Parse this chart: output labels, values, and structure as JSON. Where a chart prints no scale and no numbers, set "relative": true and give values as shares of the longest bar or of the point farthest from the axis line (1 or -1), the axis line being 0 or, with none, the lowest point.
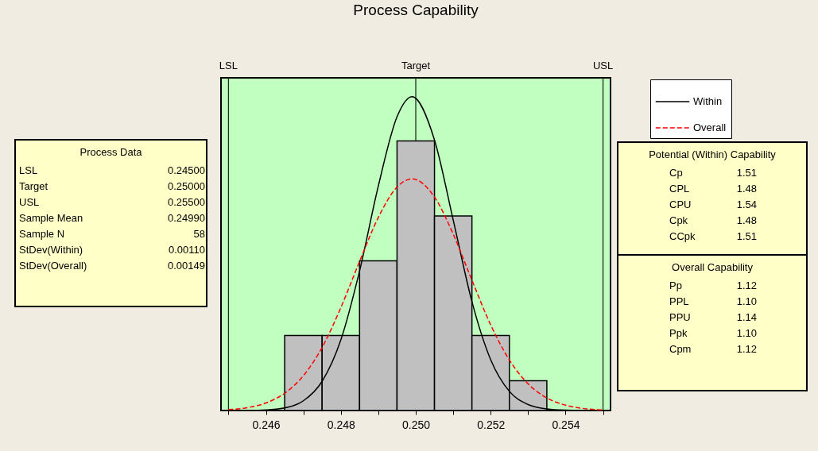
{
  "chart_data": [
    {
      "type": "other",
      "title": "Process Data",
      "categories": [
        "LSL",
        "Target",
        "USL",
        "Sample Mean",
        "Sample N",
        "StDev(Within)",
        "StDev(Overall)"
      ],
      "value_labels": [
        "0.24500",
        "0.25000",
        "0.25500",
        "0.24990",
        "58",
        "0.00110",
        "0.00149"
      ]
    },
    {
      "type": "histogram",
      "title": "Process Capability",
      "relative": true,
      "bins": [
        0.2465,
        0.2475,
        0.2485,
        0.2495,
        0.2505,
        0.2515,
        0.2525,
        0.2535
      ],
      "values": [
        0.239,
        0.239,
        0.477,
        0.859,
        0.62,
        0.239,
        0.095
      ],
      "color": "#c0c0c0",
      "xlim": [
        0.2448,
        0.2552
      ],
      "xticks": [
        {
          "value": 0.245,
          "label": null
        },
        0.246,
        {
          "value": 0.247,
          "label": null
        },
        0.248,
        {
          "value": 0.249,
          "label": null
        },
        {
          "value": 0.25,
          "label": "0.250"
        },
        {
          "value": 0.251,
          "label": null
        },
        0.252,
        {
          "value": 0.253,
          "label": null
        },
        0.254,
        {
          "value": 0.255,
          "label": null
        }
      ],
      "legend": "top right",
      "grid": false,
      "series": [
        {
          "name": "Within",
          "type": "line",
          "color": "#000000",
          "line_style": "solid",
          "x": [
            0.2455,
            0.246,
            0.2465,
            0.247,
            0.2475,
            0.248,
            0.2485,
            0.249,
            0.2495,
            0.2499,
            0.2505,
            0.251,
            0.2515,
            0.252,
            0.2525,
            0.253,
            0.2535,
            0.254,
            0.2545
          ],
          "values": [
            0,
            0.002,
            0.008,
            0.031,
            0.093,
            0.225,
            0.445,
            0.715,
            0.936,
            1,
            0.862,
            0.607,
            0.347,
            0.162,
            0.061,
            0.019,
            0.005,
            0.001,
            0
          ]
        },
        {
          "name": "Overall",
          "type": "line",
          "color": "#ff0000",
          "line_style": "dashed",
          "x": [
            0.245,
            0.2455,
            0.246,
            0.2465,
            0.247,
            0.2475,
            0.248,
            0.2485,
            0.249,
            0.2495,
            0.2499,
            0.2505,
            0.251,
            0.2515,
            0.252,
            0.2525,
            0.253,
            0.2535,
            0.254,
            0.2545,
            0.255
          ],
          "values": [
            0.003,
            0.009,
            0.024,
            0.055,
            0.111,
            0.201,
            0.328,
            0.475,
            0.615,
            0.712,
            0.738,
            0.68,
            0.562,
            0.415,
            0.273,
            0.161,
            0.085,
            0.04,
            0.017,
            0.006,
            0.002
          ]
        }
      ],
      "ref_lines": [
        {
          "axis": "x",
          "value": 0.245,
          "label": "LSL"
        },
        {
          "axis": "x",
          "value": 0.25,
          "label": "Target"
        },
        {
          "axis": "x",
          "value": 0.255,
          "label": "USL"
        }
      ]
    },
    {
      "type": "other",
      "title": "Potential (Within) Capability",
      "categories": [
        "Cp",
        "CPL",
        "CPU",
        "Cpk",
        "CCpk"
      ],
      "value_labels": [
        "1.51",
        "1.48",
        "1.54",
        "1.48",
        "1.51"
      ]
    },
    {
      "type": "other",
      "title": "Overall Capability",
      "categories": [
        "Pp",
        "PPL",
        "PPU",
        "Ppk",
        "Cpm"
      ],
      "value_labels": [
        "1.12",
        "1.10",
        "1.14",
        "1.10",
        "1.12"
      ]
    }
  ]
}
